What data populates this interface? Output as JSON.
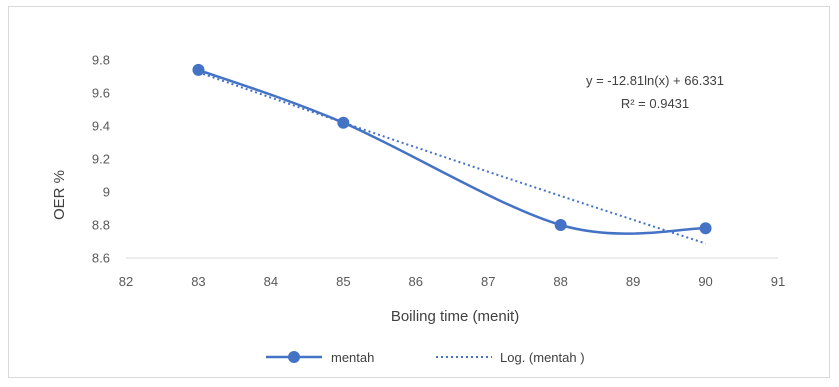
{
  "chart_data": {
    "type": "scatter",
    "title": "",
    "xlabel": "Boiling time (menit)",
    "ylabel": "OER %",
    "xlim": [
      82,
      91
    ],
    "ylim": [
      8.6,
      9.8
    ],
    "xticks": [
      "82",
      "83",
      "84",
      "85",
      "86",
      "87",
      "88",
      "89",
      "90",
      "91"
    ],
    "yticks": [
      "8.6",
      "8.8",
      "9",
      "9.2",
      "9.4",
      "9.6",
      "9.8"
    ],
    "grid": false,
    "legend_position": "bottom",
    "series": [
      {
        "name": "mentah",
        "style": "smooth-line-with-markers",
        "color": "#4472c4",
        "x": [
          83,
          85,
          88,
          90
        ],
        "y": [
          9.74,
          9.42,
          8.8,
          8.78
        ]
      }
    ],
    "trendline": {
      "name": "Log. (mentah )",
      "style": "dotted",
      "color": "#4472c4",
      "type": "logarithmic",
      "a": -12.81,
      "b": 66.331,
      "x_range": [
        83,
        90
      ]
    },
    "annotations": {
      "equation": "y = -12.81ln(x) + 66.331",
      "r_squared": "R² = 0.9431"
    }
  }
}
